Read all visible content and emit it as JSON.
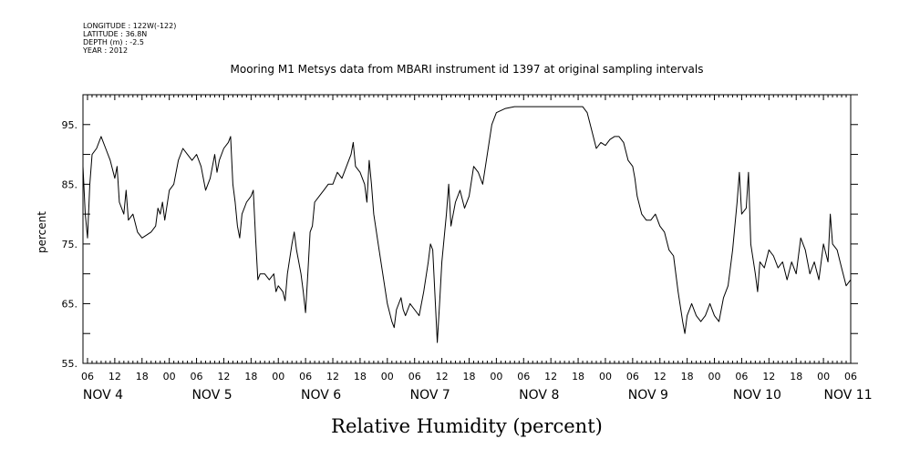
{
  "header": {
    "meta_lines": [
      "LONGITUDE : 122W(-122)",
      "LATITUDE : 36.8N",
      "DEPTH (m) : -2.5",
      "YEAR : 2012"
    ]
  },
  "chart_data": {
    "type": "line",
    "title": "Mooring M1 Metsys data from MBARI instrument id 1397 at original sampling intervals",
    "xlabel": "Relative Humidity (percent)",
    "ylabel": "percent",
    "ylim": [
      55,
      100
    ],
    "yticks": [
      55,
      65,
      75,
      85,
      95
    ],
    "yticklabels": [
      "55.",
      "65.",
      "75.",
      "85.",
      "95."
    ],
    "x_units": "hours since Nov 4 2012 00:00",
    "xlim": [
      5,
      174
    ],
    "hour_ticks": [
      "06",
      "12",
      "18",
      "00",
      "06",
      "12",
      "18",
      "00",
      "06",
      "12",
      "18",
      "00",
      "06",
      "12",
      "18",
      "00",
      "06",
      "12",
      "18",
      "00",
      "06",
      "12",
      "18",
      "00",
      "06",
      "12",
      "18",
      "00",
      "06"
    ],
    "day_labels": [
      {
        "label": "NOV  4",
        "hour": 6
      },
      {
        "label": "NOV  5",
        "hour": 30
      },
      {
        "label": "NOV  6",
        "hour": 54
      },
      {
        "label": "NOV  7",
        "hour": 78
      },
      {
        "label": "NOV  8",
        "hour": 102
      },
      {
        "label": "NOV  9",
        "hour": 126
      },
      {
        "label": "NOV 10",
        "hour": 150
      },
      {
        "label": "NOV 11",
        "hour": 170
      }
    ],
    "grid": false,
    "series": [
      {
        "line_color": "#000000",
        "points": [
          [
            5,
            88
          ],
          [
            5.5,
            80
          ],
          [
            6,
            76
          ],
          [
            6.5,
            85
          ],
          [
            7,
            90
          ],
          [
            8,
            91
          ],
          [
            9,
            93
          ],
          [
            10,
            91
          ],
          [
            11,
            89
          ],
          [
            12,
            86
          ],
          [
            12.5,
            88
          ],
          [
            13,
            82
          ],
          [
            14,
            80
          ],
          [
            14.5,
            84
          ],
          [
            15,
            79
          ],
          [
            16,
            80
          ],
          [
            17,
            77
          ],
          [
            18,
            76
          ],
          [
            19,
            76.5
          ],
          [
            20,
            77
          ],
          [
            21,
            78
          ],
          [
            21.5,
            81
          ],
          [
            22,
            80
          ],
          [
            22.5,
            82
          ],
          [
            23,
            79
          ],
          [
            24,
            84
          ],
          [
            25,
            85
          ],
          [
            26,
            89
          ],
          [
            27,
            91
          ],
          [
            28,
            90
          ],
          [
            29,
            89
          ],
          [
            30,
            90
          ],
          [
            31,
            88
          ],
          [
            32,
            84
          ],
          [
            33,
            86
          ],
          [
            34,
            90
          ],
          [
            34.5,
            87
          ],
          [
            35,
            89
          ],
          [
            36,
            91
          ],
          [
            37,
            92
          ],
          [
            37.5,
            93
          ],
          [
            38,
            85
          ],
          [
            38.5,
            82
          ],
          [
            39,
            78
          ],
          [
            39.5,
            76
          ],
          [
            40,
            80
          ],
          [
            41,
            82
          ],
          [
            42,
            83
          ],
          [
            42.5,
            84
          ],
          [
            43,
            76
          ],
          [
            43.5,
            69
          ],
          [
            44,
            70
          ],
          [
            45,
            70
          ],
          [
            46,
            69
          ],
          [
            47,
            70
          ],
          [
            47.5,
            67
          ],
          [
            48,
            68
          ],
          [
            49,
            67
          ],
          [
            49.5,
            65.5
          ],
          [
            50,
            70
          ],
          [
            51,
            75
          ],
          [
            51.5,
            77
          ],
          [
            52,
            74
          ],
          [
            53,
            70
          ],
          [
            53.5,
            67
          ],
          [
            54,
            63.5
          ],
          [
            54.5,
            70
          ],
          [
            55,
            77
          ],
          [
            55.5,
            78
          ],
          [
            56,
            82
          ],
          [
            57,
            83
          ],
          [
            58,
            84
          ],
          [
            59,
            85
          ],
          [
            60,
            85
          ],
          [
            61,
            87
          ],
          [
            62,
            86
          ],
          [
            63,
            88
          ],
          [
            64,
            90
          ],
          [
            64.5,
            92
          ],
          [
            65,
            88
          ],
          [
            66,
            87
          ],
          [
            67,
            85
          ],
          [
            67.5,
            82
          ],
          [
            68,
            89
          ],
          [
            68.5,
            85
          ],
          [
            69,
            80
          ],
          [
            70,
            75
          ],
          [
            71,
            70
          ],
          [
            72,
            65
          ],
          [
            73,
            62
          ],
          [
            73.5,
            61
          ],
          [
            74,
            64
          ],
          [
            75,
            66
          ],
          [
            75.5,
            64
          ],
          [
            76,
            63
          ],
          [
            77,
            65
          ],
          [
            78,
            64
          ],
          [
            79,
            63
          ],
          [
            80,
            67
          ],
          [
            81,
            72
          ],
          [
            81.5,
            75
          ],
          [
            82,
            74
          ],
          [
            83,
            58.5
          ],
          [
            83.5,
            65
          ],
          [
            84,
            72
          ],
          [
            85,
            80
          ],
          [
            85.5,
            85
          ],
          [
            86,
            78
          ],
          [
            87,
            82
          ],
          [
            88,
            84
          ],
          [
            89,
            81
          ],
          [
            90,
            83
          ],
          [
            91,
            88
          ],
          [
            92,
            87
          ],
          [
            93,
            85
          ],
          [
            94,
            90
          ],
          [
            95,
            95
          ],
          [
            96,
            97
          ],
          [
            98,
            97.7
          ],
          [
            100,
            98
          ],
          [
            108,
            98
          ],
          [
            115,
            98
          ],
          [
            116,
            97
          ],
          [
            117,
            94
          ],
          [
            118,
            91
          ],
          [
            119,
            92
          ],
          [
            120,
            91.5
          ],
          [
            121,
            92.5
          ],
          [
            122,
            93
          ],
          [
            123,
            93
          ],
          [
            124,
            92
          ],
          [
            125,
            89
          ],
          [
            126,
            88
          ],
          [
            126.5,
            86
          ],
          [
            127,
            83
          ],
          [
            128,
            80
          ],
          [
            129,
            79
          ],
          [
            130,
            79
          ],
          [
            131,
            80
          ],
          [
            132,
            78
          ],
          [
            133,
            77
          ],
          [
            134,
            74
          ],
          [
            135,
            73
          ],
          [
            136,
            67
          ],
          [
            137,
            62
          ],
          [
            137.5,
            60
          ],
          [
            138,
            63
          ],
          [
            139,
            65
          ],
          [
            140,
            63
          ],
          [
            141,
            62
          ],
          [
            142,
            63
          ],
          [
            143,
            65
          ],
          [
            144,
            63
          ],
          [
            145,
            62
          ],
          [
            146,
            66
          ],
          [
            147,
            68
          ],
          [
            148,
            74
          ],
          [
            149,
            82
          ],
          [
            149.5,
            87
          ],
          [
            150,
            80
          ],
          [
            151,
            81
          ],
          [
            151.5,
            87
          ],
          [
            152,
            75
          ],
          [
            153,
            70
          ],
          [
            153.5,
            67
          ],
          [
            154,
            72
          ],
          [
            155,
            71
          ],
          [
            156,
            74
          ],
          [
            157,
            73
          ],
          [
            158,
            71
          ],
          [
            159,
            72
          ],
          [
            160,
            69
          ],
          [
            161,
            72
          ],
          [
            162,
            70
          ],
          [
            163,
            76
          ],
          [
            164,
            74
          ],
          [
            165,
            70
          ],
          [
            166,
            72
          ],
          [
            167,
            69
          ],
          [
            168,
            75
          ],
          [
            169,
            72
          ],
          [
            169.5,
            80
          ],
          [
            170,
            75
          ],
          [
            171,
            74
          ],
          [
            172,
            71
          ],
          [
            173,
            68
          ],
          [
            174,
            69
          ]
        ]
      }
    ]
  }
}
